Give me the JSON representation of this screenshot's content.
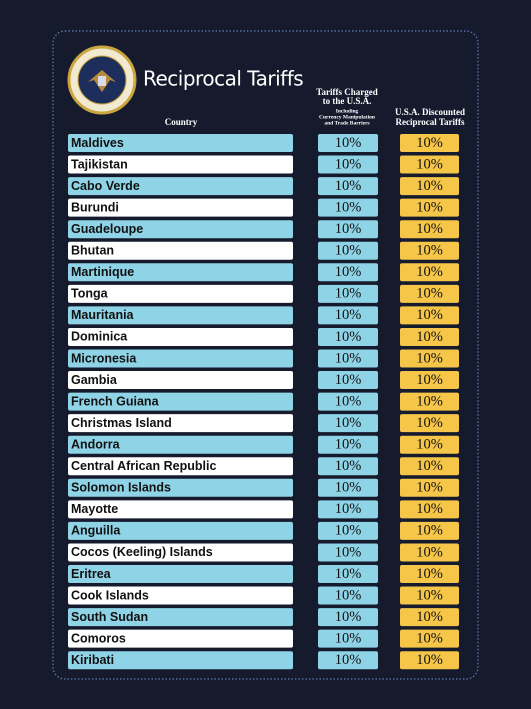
{
  "header": {
    "title": "Reciprocal Tariffs"
  },
  "columns": [
    {
      "lines": [
        "Country"
      ]
    },
    {
      "lines": [
        "Tariffs Charged",
        "to the U.S.A."
      ],
      "note_lines": [
        "Including",
        "Currency Manipulation",
        "and Trade Barriers"
      ]
    },
    {
      "lines": [
        "U.S.A. Discounted",
        "Reciprocal Tariffs"
      ]
    }
  ],
  "table": {
    "rows": [
      [
        "Maldives",
        "10%",
        "10%"
      ],
      [
        "Tajikistan",
        "10%",
        "10%"
      ],
      [
        "Cabo Verde",
        "10%",
        "10%"
      ],
      [
        "Burundi",
        "10%",
        "10%"
      ],
      [
        "Guadeloupe",
        "10%",
        "10%"
      ],
      [
        "Bhutan",
        "10%",
        "10%"
      ],
      [
        "Martinique",
        "10%",
        "10%"
      ],
      [
        "Tonga",
        "10%",
        "10%"
      ],
      [
        "Mauritania",
        "10%",
        "10%"
      ],
      [
        "Dominica",
        "10%",
        "10%"
      ],
      [
        "Micronesia",
        "10%",
        "10%"
      ],
      [
        "Gambia",
        "10%",
        "10%"
      ],
      [
        "French Guiana",
        "10%",
        "10%"
      ],
      [
        "Christmas Island",
        "10%",
        "10%"
      ],
      [
        "Andorra",
        "10%",
        "10%"
      ],
      [
        "Central African Republic",
        "10%",
        "10%"
      ],
      [
        "Solomon Islands",
        "10%",
        "10%"
      ],
      [
        "Mayotte",
        "10%",
        "10%"
      ],
      [
        "Anguilla",
        "10%",
        "10%"
      ],
      [
        "Cocos (Keeling) Islands",
        "10%",
        "10%"
      ],
      [
        "Eritrea",
        "10%",
        "10%"
      ],
      [
        "Cook Islands",
        "10%",
        "10%"
      ],
      [
        "South Sudan",
        "10%",
        "10%"
      ],
      [
        "Comoros",
        "10%",
        "10%"
      ],
      [
        "Kiribati",
        "10%",
        "10%"
      ]
    ]
  }
}
